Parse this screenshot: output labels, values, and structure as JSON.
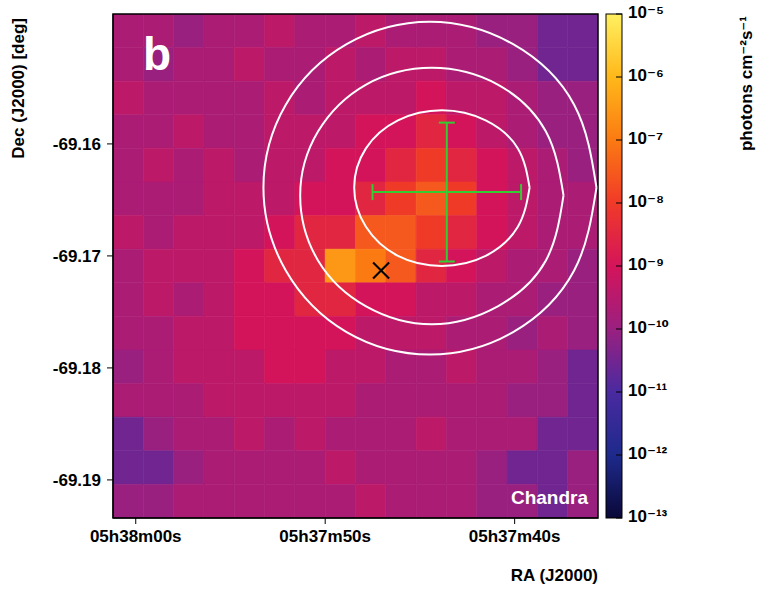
{
  "chart_data": {
    "type": "heatmap",
    "panel": "b",
    "annotation": "Chandra",
    "xlabel": "RA (J2000)",
    "ylabel": "Dec (J2000) [deg]",
    "xlim": [
      20281.2,
      20255.6
    ],
    "xticks": [
      {
        "value": 20280,
        "label": "05h38m00s"
      },
      {
        "value": 20270,
        "label": "05h37m50s"
      },
      {
        "value": 20260,
        "label": "05h37m40s"
      }
    ],
    "ylim": [
      -69.1934,
      -69.1484
    ],
    "yticks": [
      -69.19,
      -69.18,
      -69.17,
      -69.16
    ],
    "cells": {
      "x_edges": [
        20281.2,
        20279.6,
        20278,
        20276.4,
        20274.8,
        20273.2,
        20271.6,
        20270,
        20268.4,
        20266.8,
        20265.2,
        20263.6,
        20262,
        20260.4,
        20258.8,
        20257.2,
        20255.6
      ],
      "y_edges": [
        -69.1484,
        -69.1514,
        -69.1544,
        -69.1574,
        -69.1604,
        -69.1634,
        -69.1664,
        -69.1694,
        -69.1724,
        -69.1754,
        -69.1784,
        -69.1814,
        -69.1844,
        -69.1874,
        -69.1904,
        -69.1934
      ],
      "values": [
        [
          2e-10,
          2e-10,
          1e-10,
          2e-10,
          2e-10,
          4e-10,
          2e-10,
          2e-10,
          4e-10,
          2e-10,
          2e-10,
          2e-10,
          1e-10,
          1e-10,
          3e-11,
          3e-11
        ],
        [
          2e-10,
          1e-10,
          2e-10,
          2e-10,
          4e-10,
          2e-10,
          2e-10,
          4e-10,
          2e-10,
          4e-10,
          4e-10,
          2e-10,
          2e-10,
          1e-10,
          3e-11,
          3e-11
        ],
        [
          4e-10,
          2e-10,
          2e-10,
          2e-10,
          2e-10,
          4e-10,
          2e-10,
          4e-10,
          4e-10,
          4e-10,
          1e-09,
          4e-10,
          4e-10,
          2e-10,
          1e-10,
          1e-10
        ],
        [
          2e-10,
          2e-10,
          4e-10,
          2e-10,
          2e-10,
          4e-10,
          4e-10,
          4e-10,
          1e-09,
          1e-09,
          3e-09,
          1e-09,
          4e-10,
          2e-10,
          1e-10,
          1e-10
        ],
        [
          2e-10,
          4e-10,
          2e-10,
          4e-10,
          2e-10,
          4e-10,
          4e-10,
          1e-09,
          1e-09,
          3e-09,
          1e-08,
          3e-09,
          1e-09,
          4e-10,
          2e-10,
          1e-10
        ],
        [
          2e-10,
          2e-10,
          2e-10,
          4e-10,
          4e-10,
          4e-10,
          1e-09,
          1e-09,
          3e-09,
          1e-08,
          3e-08,
          1e-08,
          1e-09,
          4e-10,
          2e-10,
          2e-10
        ],
        [
          4e-10,
          2e-10,
          4e-10,
          4e-10,
          4e-10,
          1e-09,
          3e-09,
          3e-09,
          3e-08,
          3e-08,
          1e-08,
          3e-09,
          1e-09,
          4e-10,
          2e-10,
          2e-10
        ],
        [
          2e-10,
          4e-10,
          4e-10,
          4e-10,
          1e-09,
          3e-09,
          3e-09,
          3e-07,
          1e-07,
          3e-08,
          3e-09,
          1e-09,
          4e-10,
          2e-10,
          2e-10,
          1e-10
        ],
        [
          2e-10,
          4e-10,
          2e-10,
          4e-10,
          1e-09,
          1e-09,
          3e-09,
          3e-09,
          1e-09,
          1e-09,
          4e-10,
          4e-10,
          2e-10,
          2e-10,
          1e-10,
          1e-10
        ],
        [
          2e-10,
          2e-10,
          4e-10,
          4e-10,
          1e-09,
          1e-09,
          1e-09,
          1e-09,
          4e-10,
          4e-10,
          4e-10,
          2e-10,
          2e-10,
          1e-10,
          2e-10,
          1e-10
        ],
        [
          1e-10,
          2e-10,
          4e-10,
          4e-10,
          4e-10,
          1e-09,
          1e-09,
          4e-10,
          4e-10,
          2e-10,
          2e-10,
          4e-10,
          2e-10,
          2e-10,
          1e-10,
          3e-11
        ],
        [
          2e-10,
          2e-10,
          2e-10,
          4e-10,
          4e-10,
          4e-10,
          4e-10,
          4e-10,
          2e-10,
          2e-10,
          2e-10,
          2e-10,
          2e-10,
          1e-10,
          1e-10,
          3e-11
        ],
        [
          3e-11,
          1e-10,
          2e-10,
          2e-10,
          4e-10,
          2e-10,
          4e-10,
          2e-10,
          2e-10,
          2e-10,
          4e-10,
          2e-10,
          2e-10,
          2e-10,
          3e-11,
          3e-11
        ],
        [
          3e-11,
          3e-11,
          1e-10,
          2e-10,
          2e-10,
          2e-10,
          2e-10,
          4e-10,
          2e-10,
          2e-10,
          2e-10,
          2e-10,
          1e-10,
          3e-11,
          3e-11,
          1e-10
        ],
        [
          1e-10,
          1e-10,
          2e-10,
          2e-10,
          2e-10,
          2e-10,
          2e-10,
          2e-10,
          4e-10,
          2e-10,
          2e-10,
          2e-10,
          1e-10,
          1e-10,
          3e-11,
          1e-10
        ]
      ]
    },
    "colorbar": {
      "label": "photons cm⁻²s⁻¹",
      "log": true,
      "lim": [
        1e-13,
        1e-05
      ],
      "ticks": [
        {
          "value": 1e-13,
          "label": "10⁻¹³"
        },
        {
          "value": 1e-12,
          "label": "10⁻¹²"
        },
        {
          "value": 1e-11,
          "label": "10⁻¹¹"
        },
        {
          "value": 1e-10,
          "label": "10⁻¹⁰"
        },
        {
          "value": 1e-09,
          "label": "10⁻⁹"
        },
        {
          "value": 1e-08,
          "label": "10⁻⁸"
        },
        {
          "value": 1e-07,
          "label": "10⁻⁷"
        },
        {
          "value": 1e-06,
          "label": "10⁻⁶"
        },
        {
          "value": 1e-05,
          "label": "10⁻⁵"
        }
      ]
    },
    "contours": {
      "color": "#ffffff",
      "lines": [
        {
          "ra": [
            20259.21,
            20259.83,
            20261.53,
            20263.84,
            20266.16,
            20267.85,
            20268.47,
            20267.85,
            20266.16,
            20263.84,
            20261.53,
            20259.83,
            20259.21
          ],
          "dec": [
            -69.1639,
            -69.1604,
            -69.1579,
            -69.157,
            -69.1579,
            -69.1604,
            -69.1639,
            -69.1674,
            -69.17,
            -69.1709,
            -69.17,
            -69.1674,
            -69.1639
          ]
        },
        {
          "ra": [
            20257.42,
            20258.35,
            20260.89,
            20264.37,
            20267.84,
            20270.38,
            20271.32,
            20270.38,
            20267.84,
            20264.37,
            20260.89,
            20258.35,
            20257.42
          ],
          "dec": [
            -69.1646,
            -69.1589,
            -69.1547,
            -69.1532,
            -69.1547,
            -69.1589,
            -69.1646,
            -69.1704,
            -69.1745,
            -69.1761,
            -69.1745,
            -69.1704,
            -69.1646
          ]
        },
        {
          "ra": [
            20255.68,
            20256.86,
            20260.08,
            20264.47,
            20268.87,
            20272.08,
            20273.26,
            20272.08,
            20268.87,
            20264.47,
            20260.08,
            20256.86,
            20255.68
          ],
          "dec": [
            -69.1639,
            -69.1565,
            -69.1511,
            -69.1491,
            -69.1511,
            -69.1565,
            -69.1639,
            -69.1713,
            -69.1768,
            -69.1788,
            -69.1768,
            -69.1713,
            -69.1639
          ]
        }
      ]
    },
    "best_fit": {
      "ra": 20263.58,
      "dec": -69.1643,
      "ra_error": 3.92,
      "dec_error": 0.0062,
      "color": "#33cc33"
    },
    "markers": [
      {
        "ra": 20267.05,
        "dec": -69.1713,
        "marker": "x",
        "color": "#000000"
      }
    ]
  }
}
